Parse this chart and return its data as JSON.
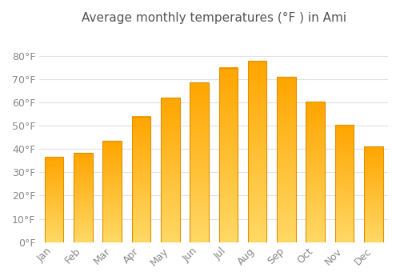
{
  "title": "Average monthly temperatures (°F ) in Ami",
  "months": [
    "Jan",
    "Feb",
    "Mar",
    "Apr",
    "May",
    "Jun",
    "Jul",
    "Aug",
    "Sep",
    "Oct",
    "Nov",
    "Dec"
  ],
  "values": [
    36.5,
    38.5,
    43.5,
    54.0,
    62.0,
    68.5,
    75.0,
    78.0,
    71.0,
    60.5,
    50.5,
    41.0
  ],
  "bar_color_bottom": "#FFD966",
  "bar_color_top": "#FFA500",
  "bar_edge_color": "#E09000",
  "background_color": "#FFFFFF",
  "grid_color": "#E0E0E0",
  "ylim": [
    0,
    90
  ],
  "yticks": [
    0,
    10,
    20,
    30,
    40,
    50,
    60,
    70,
    80
  ],
  "ylabel_suffix": "°F",
  "title_fontsize": 11,
  "tick_fontsize": 9,
  "title_color": "#555555",
  "tick_color": "#888888"
}
